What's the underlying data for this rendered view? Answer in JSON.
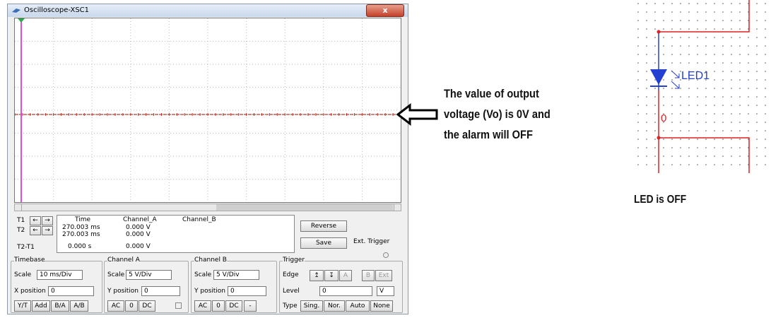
{
  "window": {
    "title": "Oscilloscope-XSC1",
    "close": "x"
  },
  "readout": {
    "labels": [
      "T1",
      "T2",
      "T2-T1"
    ],
    "headers": [
      "Time",
      "Channel_A",
      "Channel_B"
    ],
    "rows": [
      [
        "270.003 ms",
        "0.000 V"
      ],
      [
        "270.003 ms",
        "0.000 V"
      ],
      [
        "0.000 s",
        "0.000 V"
      ]
    ],
    "buttons": [
      "Reverse",
      "Save"
    ],
    "ext_trigger": "Ext. Trigger"
  },
  "timebase": {
    "title": "Timebase",
    "scale_label": "Scale",
    "scale": "10 ms/Div",
    "position_label": "X position",
    "position": "0",
    "buttons": [
      "Y/T",
      "Add",
      "B/A",
      "A/B"
    ]
  },
  "channel_a": {
    "title": "Channel A",
    "scale_label": "Scale",
    "scale": "5 V/Div",
    "position_label": "Y position",
    "position": "0",
    "buttons": [
      "AC",
      "0",
      "DC"
    ]
  },
  "channel_b": {
    "title": "Channel B",
    "scale_label": "Scale",
    "scale": "5 V/Div",
    "position_label": "Y position",
    "position": "0",
    "buttons": [
      "AC",
      "0",
      "DC",
      "-"
    ]
  },
  "trigger": {
    "title": "Trigger",
    "edge_label": "Edge",
    "edge_buttons": [
      "A",
      "B",
      "Ext"
    ],
    "level_label": "Level",
    "level": "0",
    "level_unit": "V",
    "type_label": "Type",
    "type_buttons": [
      "Sing.",
      "Nor.",
      "Auto",
      "None"
    ]
  },
  "annotation": {
    "lines": [
      "The value of output",
      "voltage (Vo) is 0V and",
      "the alarm will OFF"
    ]
  },
  "circuit": {
    "led_label": "LED1",
    "node_label": "0",
    "caption": "LED is OFF"
  }
}
